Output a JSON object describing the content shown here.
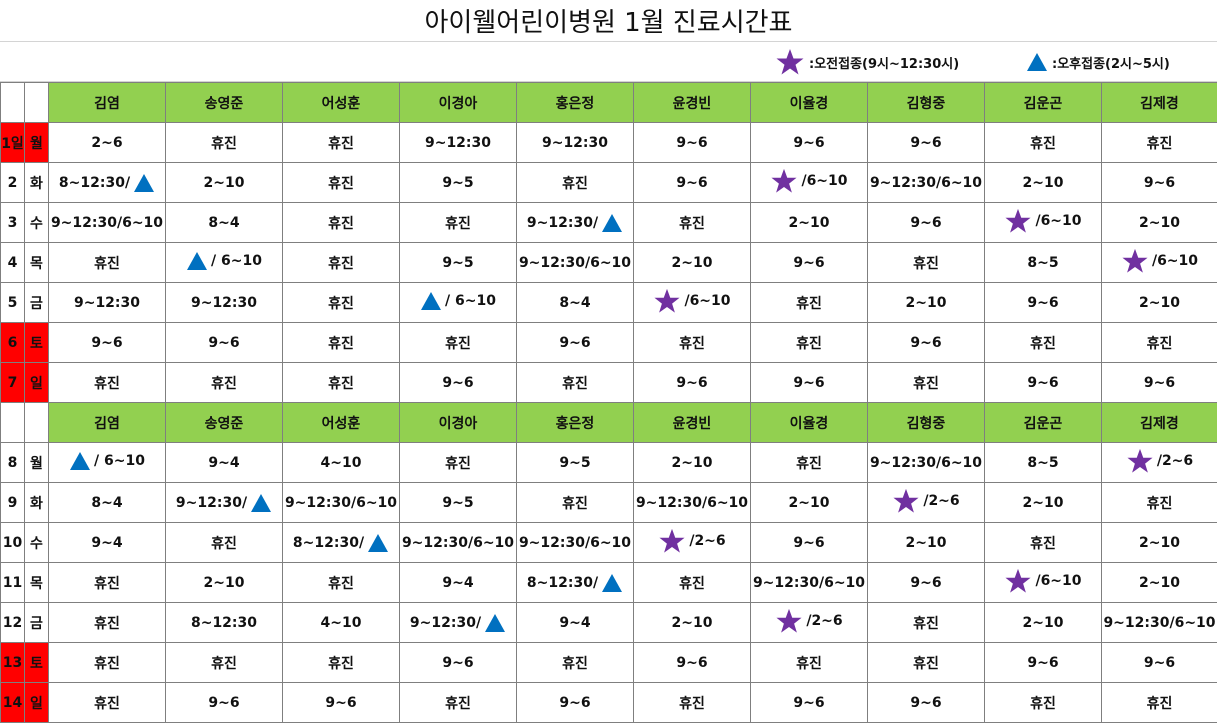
{
  "title": "아이웰어린이병원 1월 진료시간표",
  "legend": [
    {
      "icon": "star",
      "text": ":오전접종(9시~12:30시)"
    },
    {
      "icon": "triangle",
      "text": ":오후접종(2시~5시)"
    }
  ],
  "colors": {
    "header_green": "#92d050",
    "red": "#ff0000",
    "star": "#7030a0",
    "triangle": "#0070c0",
    "weekend_text": "#e00000"
  },
  "doctors": [
    "김염",
    "송영준",
    "어성훈",
    "이경아",
    "홍은정",
    "윤경빈",
    "이율경",
    "김형중",
    "김운곤",
    "김제경"
  ],
  "weeks": [
    {
      "rows": [
        {
          "date": "1일",
          "day": "월",
          "weekend": true,
          "cells": [
            {
              "text": "2~6"
            },
            {
              "text": "휴진"
            },
            {
              "text": "휴진"
            },
            {
              "text": "9~12:30"
            },
            {
              "text": "9~12:30"
            },
            {
              "text": "9~6"
            },
            {
              "text": "9~6"
            },
            {
              "text": "9~6"
            },
            {
              "text": "휴진"
            },
            {
              "text": "휴진"
            }
          ]
        },
        {
          "date": "2",
          "day": "화",
          "weekend": false,
          "cells": [
            {
              "text": "8~12:30/",
              "icon": "triangle",
              "icon_pos": "after"
            },
            {
              "text": "2~10"
            },
            {
              "text": "휴진"
            },
            {
              "text": "9~5"
            },
            {
              "text": "휴진"
            },
            {
              "text": "9~6"
            },
            {
              "text": "/6~10",
              "icon": "star",
              "icon_pos": "before"
            },
            {
              "text": "9~12:30/6~10"
            },
            {
              "text": "2~10"
            },
            {
              "text": "9~6"
            }
          ]
        },
        {
          "date": "3",
          "day": "수",
          "weekend": false,
          "cells": [
            {
              "text": "9~12:30/6~10"
            },
            {
              "text": "8~4"
            },
            {
              "text": "휴진"
            },
            {
              "text": "휴진"
            },
            {
              "text": "9~12:30/",
              "icon": "triangle",
              "icon_pos": "after"
            },
            {
              "text": "휴진"
            },
            {
              "text": "2~10"
            },
            {
              "text": "9~6"
            },
            {
              "text": "/6~10",
              "icon": "star",
              "icon_pos": "before"
            },
            {
              "text": "2~10"
            }
          ]
        },
        {
          "date": "4",
          "day": "목",
          "weekend": false,
          "cells": [
            {
              "text": "휴진"
            },
            {
              "text": "/ 6~10",
              "icon": "triangle",
              "icon_pos": "before"
            },
            {
              "text": "휴진"
            },
            {
              "text": "9~5"
            },
            {
              "text": "9~12:30/6~10"
            },
            {
              "text": "2~10"
            },
            {
              "text": "9~6"
            },
            {
              "text": "휴진"
            },
            {
              "text": "8~5"
            },
            {
              "text": "/6~10",
              "icon": "star",
              "icon_pos": "before"
            }
          ]
        },
        {
          "date": "5",
          "day": "금",
          "weekend": false,
          "cells": [
            {
              "text": "9~12:30"
            },
            {
              "text": "9~12:30"
            },
            {
              "text": "휴진"
            },
            {
              "text": "/ 6~10",
              "icon": "triangle",
              "icon_pos": "before"
            },
            {
              "text": "8~4"
            },
            {
              "text": "/6~10",
              "icon": "star",
              "icon_pos": "before"
            },
            {
              "text": "휴진"
            },
            {
              "text": "2~10"
            },
            {
              "text": "9~6"
            },
            {
              "text": "2~10"
            }
          ]
        },
        {
          "date": "6",
          "day": "토",
          "weekend": true,
          "cells": [
            {
              "text": "9~6"
            },
            {
              "text": "9~6"
            },
            {
              "text": "휴진"
            },
            {
              "text": "휴진"
            },
            {
              "text": "9~6"
            },
            {
              "text": "휴진"
            },
            {
              "text": "휴진"
            },
            {
              "text": "9~6"
            },
            {
              "text": "휴진"
            },
            {
              "text": "휴진"
            }
          ]
        },
        {
          "date": "7",
          "day": "일",
          "weekend": true,
          "cells": [
            {
              "text": "휴진"
            },
            {
              "text": "휴진"
            },
            {
              "text": "휴진"
            },
            {
              "text": "9~6"
            },
            {
              "text": "휴진"
            },
            {
              "text": "9~6"
            },
            {
              "text": "9~6"
            },
            {
              "text": "휴진"
            },
            {
              "text": "9~6"
            },
            {
              "text": "9~6"
            }
          ]
        }
      ]
    },
    {
      "rows": [
        {
          "date": "8",
          "day": "월",
          "weekend": false,
          "cells": [
            {
              "text": "/ 6~10",
              "icon": "triangle",
              "icon_pos": "before"
            },
            {
              "text": "9~4"
            },
            {
              "text": "4~10"
            },
            {
              "text": "휴진"
            },
            {
              "text": "9~5"
            },
            {
              "text": "2~10"
            },
            {
              "text": "휴진"
            },
            {
              "text": "9~12:30/6~10"
            },
            {
              "text": "8~5"
            },
            {
              "text": "/2~6",
              "icon": "star",
              "icon_pos": "before"
            }
          ]
        },
        {
          "date": "9",
          "day": "화",
          "weekend": false,
          "cells": [
            {
              "text": "8~4"
            },
            {
              "text": "9~12:30/",
              "icon": "triangle",
              "icon_pos": "after"
            },
            {
              "text": "9~12:30/6~10"
            },
            {
              "text": "9~5"
            },
            {
              "text": "휴진"
            },
            {
              "text": "9~12:30/6~10"
            },
            {
              "text": "2~10"
            },
            {
              "text": "/2~6",
              "icon": "star",
              "icon_pos": "before"
            },
            {
              "text": "2~10"
            },
            {
              "text": "휴진"
            }
          ]
        },
        {
          "date": "10",
          "day": "수",
          "weekend": false,
          "cells": [
            {
              "text": "9~4"
            },
            {
              "text": "휴진"
            },
            {
              "text": "8~12:30/",
              "icon": "triangle",
              "icon_pos": "after"
            },
            {
              "text": "9~12:30/6~10"
            },
            {
              "text": "9~12:30/6~10"
            },
            {
              "text": "/2~6",
              "icon": "star",
              "icon_pos": "before"
            },
            {
              "text": "9~6"
            },
            {
              "text": "2~10"
            },
            {
              "text": "휴진"
            },
            {
              "text": "2~10"
            }
          ]
        },
        {
          "date": "11",
          "day": "목",
          "weekend": false,
          "cells": [
            {
              "text": "휴진"
            },
            {
              "text": "2~10"
            },
            {
              "text": "휴진"
            },
            {
              "text": "9~4"
            },
            {
              "text": "8~12:30/",
              "icon": "triangle",
              "icon_pos": "after"
            },
            {
              "text": "휴진"
            },
            {
              "text": "9~12:30/6~10"
            },
            {
              "text": "9~6"
            },
            {
              "text": "/6~10",
              "icon": "star",
              "icon_pos": "before"
            },
            {
              "text": "2~10"
            }
          ]
        },
        {
          "date": "12",
          "day": "금",
          "weekend": false,
          "cells": [
            {
              "text": "휴진"
            },
            {
              "text": "8~12:30"
            },
            {
              "text": "4~10"
            },
            {
              "text": "9~12:30/",
              "icon": "triangle",
              "icon_pos": "after"
            },
            {
              "text": "9~4"
            },
            {
              "text": "2~10"
            },
            {
              "text": "/2~6",
              "icon": "star",
              "icon_pos": "before"
            },
            {
              "text": "휴진"
            },
            {
              "text": "2~10"
            },
            {
              "text": "9~12:30/6~10"
            }
          ]
        },
        {
          "date": "13",
          "day": "토",
          "weekend": true,
          "cells": [
            {
              "text": "휴진"
            },
            {
              "text": "휴진"
            },
            {
              "text": "휴진"
            },
            {
              "text": "9~6"
            },
            {
              "text": "휴진"
            },
            {
              "text": "9~6"
            },
            {
              "text": "휴진"
            },
            {
              "text": "휴진"
            },
            {
              "text": "9~6"
            },
            {
              "text": "9~6"
            }
          ]
        },
        {
          "date": "14",
          "day": "일",
          "weekend": true,
          "cells": [
            {
              "text": "휴진"
            },
            {
              "text": "9~6"
            },
            {
              "text": "9~6"
            },
            {
              "text": "휴진"
            },
            {
              "text": "9~6"
            },
            {
              "text": "휴진"
            },
            {
              "text": "9~6"
            },
            {
              "text": "9~6"
            },
            {
              "text": "휴진"
            },
            {
              "text": "휴진"
            }
          ]
        }
      ]
    }
  ]
}
